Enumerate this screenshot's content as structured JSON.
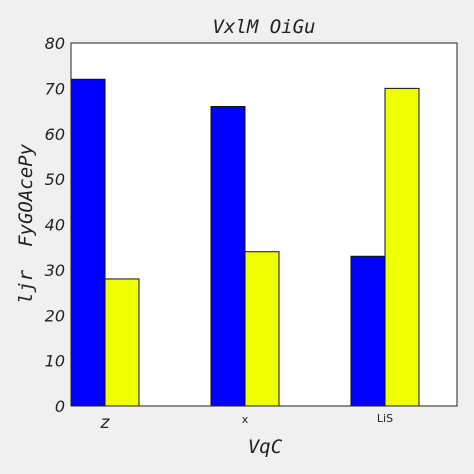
{
  "chart_data": {
    "type": "bar",
    "title": "VxlM OiGu",
    "xlabel": "VqC",
    "ylabel": "ljr  FyGOAcePy",
    "categories": [
      "z",
      "x",
      "LiS"
    ],
    "series": [
      {
        "values": [
          72,
          66,
          33
        ],
        "color": "#0000ff"
      },
      {
        "values": [
          28,
          34,
          70
        ],
        "color": "#eeff00"
      }
    ],
    "ylim": [
      0,
      80
    ],
    "yticks": [
      "0",
      "10",
      "20",
      "30",
      "40",
      "50",
      "60",
      "70",
      "80"
    ],
    "grid": false,
    "legend": "none"
  }
}
